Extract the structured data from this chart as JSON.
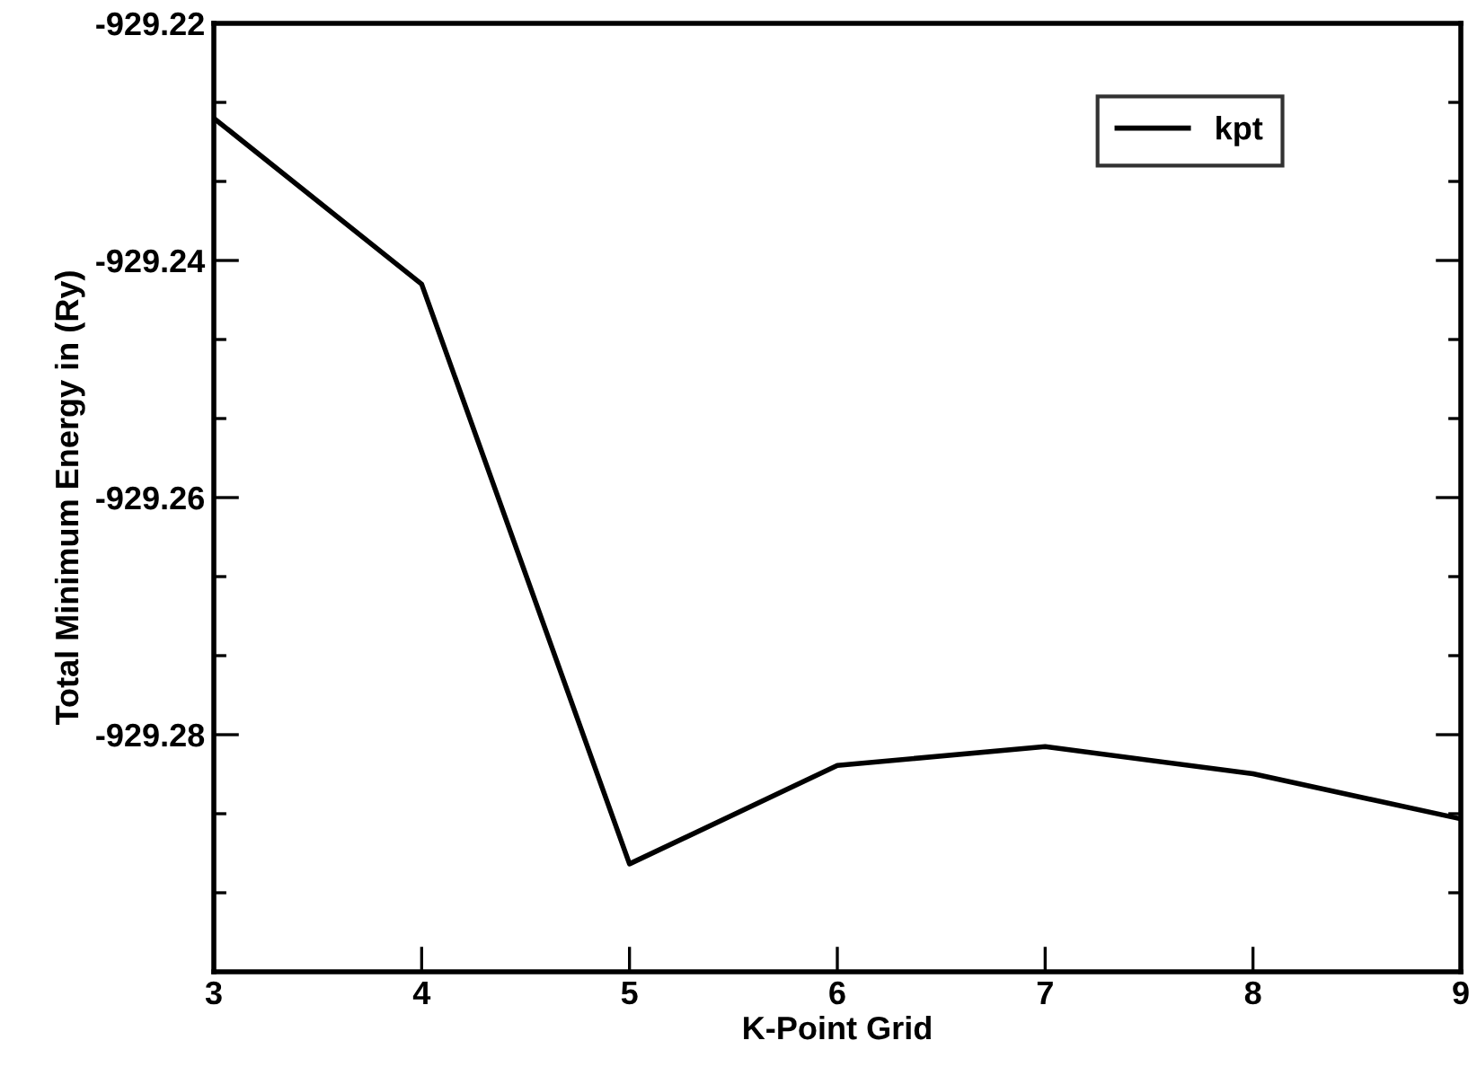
{
  "chart_data": {
    "type": "line",
    "xlabel": "K-Point Grid",
    "ylabel": "Total Minimum Energy in (Ry)",
    "x": [
      3,
      4,
      5,
      6,
      7,
      8,
      9
    ],
    "series": [
      {
        "name": "kpt",
        "color": "#000000",
        "values": [
          -929.228,
          -929.242,
          -929.2909,
          -929.2826,
          -929.281,
          -929.2833,
          -929.2871
        ]
      }
    ],
    "xlim": [
      3,
      9
    ],
    "xticks": [
      3,
      4,
      5,
      6,
      7,
      8,
      9
    ],
    "ylim": [
      -929.3,
      -929.22
    ],
    "yticks": [
      -929.28,
      -929.26,
      -929.24,
      -929.22
    ],
    "legend": "top right",
    "marker": "none",
    "line_style": "solid",
    "grid": false
  }
}
